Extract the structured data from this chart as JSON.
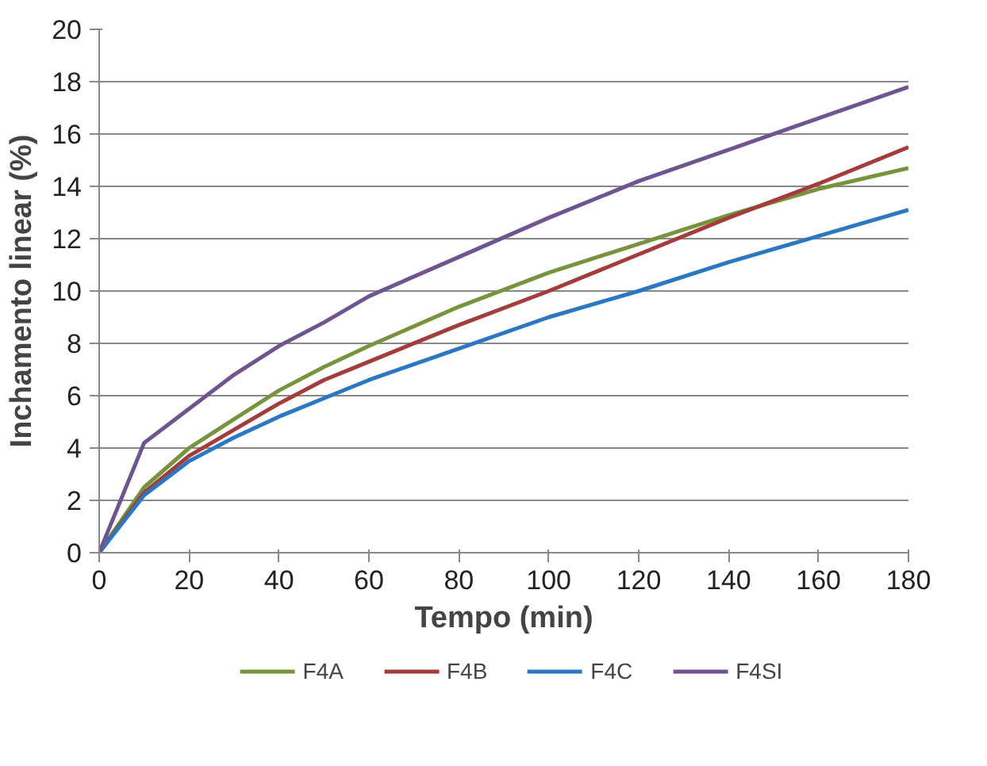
{
  "chart_data": {
    "type": "line",
    "xlabel": "Tempo (min)",
    "ylabel": "Inchamento linear (%)",
    "x": [
      0,
      10,
      20,
      30,
      40,
      50,
      60,
      80,
      100,
      120,
      140,
      160,
      180
    ],
    "series": [
      {
        "name": "F4A",
        "color": "#77933c",
        "values": [
          0,
          2.5,
          4.0,
          5.1,
          6.2,
          7.1,
          7.9,
          9.4,
          10.7,
          11.8,
          12.9,
          13.9,
          14.7
        ]
      },
      {
        "name": "F4B",
        "color": "#a33c3a",
        "values": [
          0,
          2.3,
          3.7,
          4.7,
          5.7,
          6.6,
          7.3,
          8.7,
          10.0,
          11.4,
          12.8,
          14.1,
          15.5
        ]
      },
      {
        "name": "F4C",
        "color": "#2a78c4",
        "values": [
          0,
          2.2,
          3.5,
          4.4,
          5.2,
          5.9,
          6.6,
          7.8,
          9.0,
          10.0,
          11.1,
          12.1,
          13.1
        ]
      },
      {
        "name": "F4SI",
        "color": "#6f5590",
        "values": [
          0,
          4.2,
          5.5,
          6.8,
          7.9,
          8.8,
          9.8,
          11.3,
          12.8,
          14.2,
          15.4,
          16.6,
          17.8
        ]
      }
    ],
    "xlim": [
      0,
      180
    ],
    "xticks": [
      0,
      20,
      40,
      60,
      80,
      100,
      120,
      140,
      160,
      180
    ],
    "ylim": [
      0,
      20
    ],
    "yticks": [
      0,
      2,
      4,
      6,
      8,
      10,
      12,
      14,
      16,
      18,
      20
    ],
    "grid": "y",
    "legend": "bottom",
    "marker": "none",
    "line_style": "solid"
  }
}
